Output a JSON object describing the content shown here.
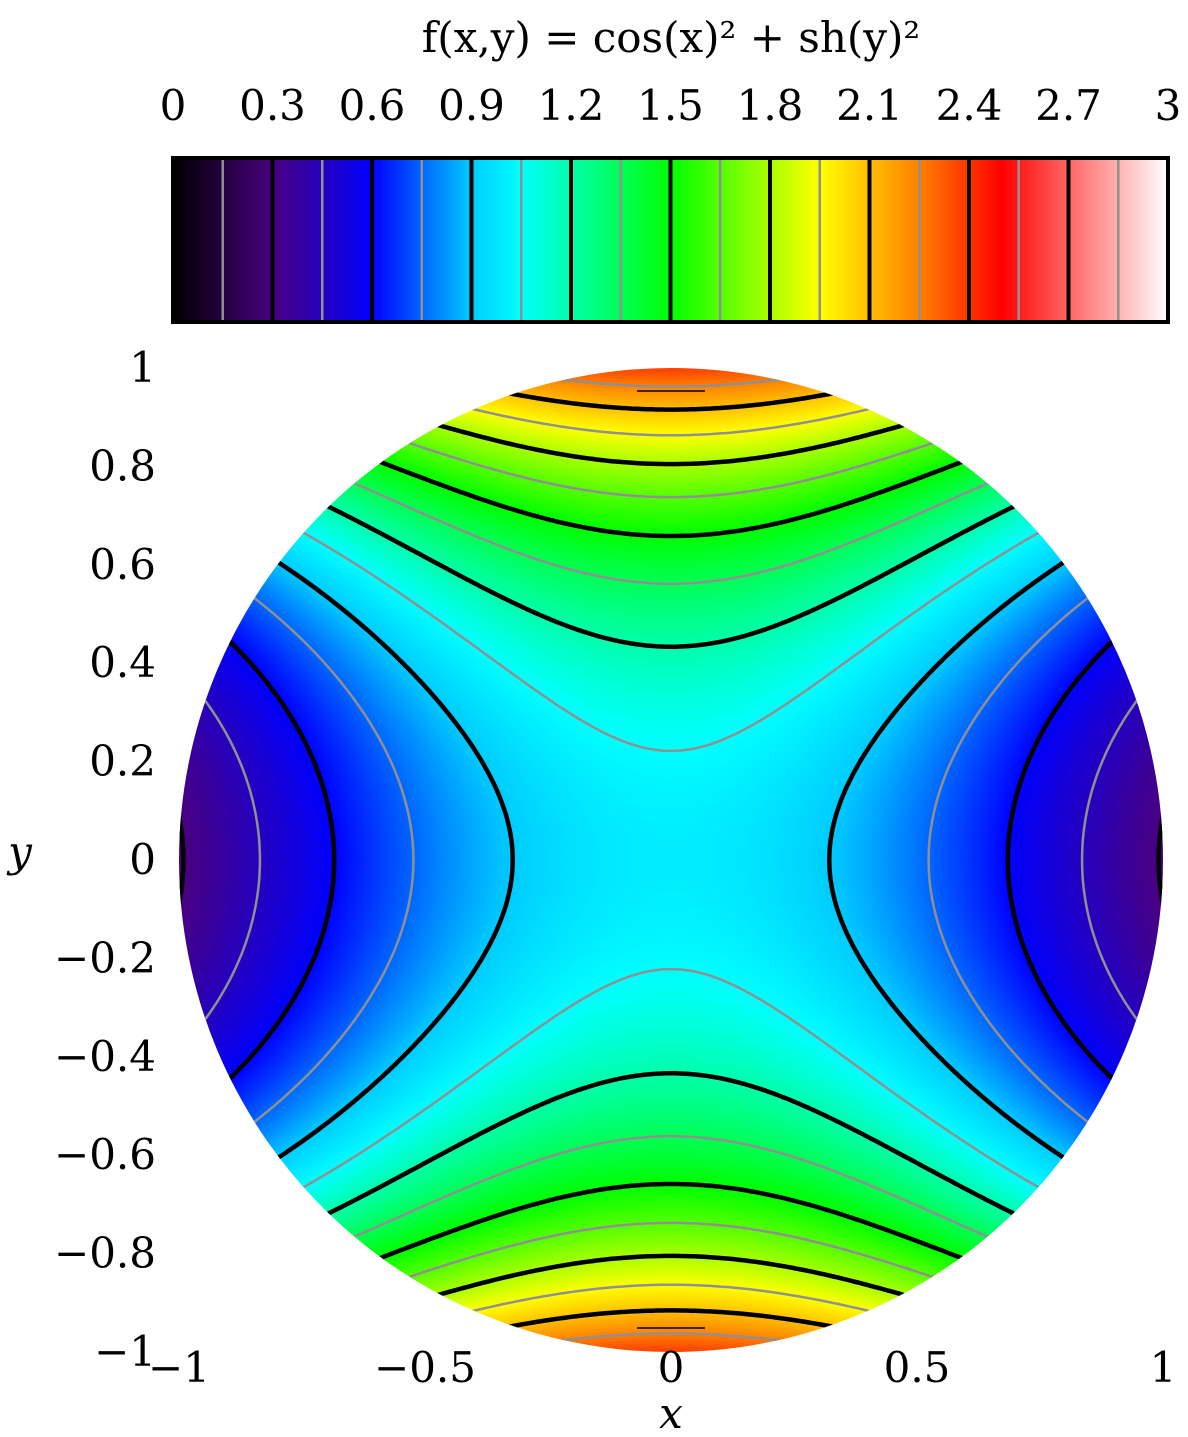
{
  "chart_data": {
    "type": "heatmap",
    "title": "f(x,y) = cos(x)² + sh(y)²",
    "function": "cos(x)^2 + sinh(y)^2",
    "domain": "unit disk x^2 + y^2 <= 1",
    "xlabel": "x",
    "ylabel": "y",
    "xlim": [
      -1,
      1
    ],
    "ylim": [
      -1,
      1
    ],
    "xticks": [
      "−1",
      "−0.5",
      "0",
      "0.5",
      "1"
    ],
    "xtick_values": [
      -1,
      -0.5,
      0,
      0.5,
      1
    ],
    "yticks": [
      "1",
      "0.8",
      "0.6",
      "0.4",
      "0.2",
      "0",
      "−0.2",
      "−0.4",
      "−0.6",
      "−0.8",
      "−1"
    ],
    "ytick_values": [
      1,
      0.8,
      0.6,
      0.4,
      0.2,
      0,
      -0.2,
      -0.4,
      -0.6,
      -0.8,
      -1
    ],
    "colorbar": {
      "placement": "top",
      "range": [
        0,
        3
      ],
      "ticks": [
        "0",
        "0.3",
        "0.6",
        "0.9",
        "1.2",
        "1.5",
        "1.8",
        "2.1",
        "2.4",
        "2.7",
        "3"
      ],
      "tick_values": [
        0,
        0.3,
        0.6,
        0.9,
        1.2,
        1.5,
        1.8,
        2.1,
        2.4,
        2.7,
        3
      ],
      "colormap": [
        {
          "v": 0.0,
          "color": "#000000"
        },
        {
          "v": 0.3,
          "color": "#4a0080"
        },
        {
          "v": 0.6,
          "color": "#0000ff"
        },
        {
          "v": 0.9,
          "color": "#00ccff"
        },
        {
          "v": 1.05,
          "color": "#00ffff"
        },
        {
          "v": 1.5,
          "color": "#00ff00"
        },
        {
          "v": 1.95,
          "color": "#ffff00"
        },
        {
          "v": 2.25,
          "color": "#ff8000"
        },
        {
          "v": 2.5,
          "color": "#ff0000"
        },
        {
          "v": 3.0,
          "color": "#ffffff"
        }
      ]
    },
    "contours": {
      "major_levels": [
        0.3,
        0.6,
        0.9,
        1.2,
        1.5,
        1.8,
        2.1,
        2.4,
        2.7
      ],
      "minor_levels": [
        0.15,
        0.45,
        0.75,
        1.05,
        1.35,
        1.65,
        1.95,
        2.25,
        2.55,
        2.85
      ],
      "major_color": "#000000",
      "minor_color": "#909090"
    },
    "grid": false,
    "legend": "none"
  }
}
